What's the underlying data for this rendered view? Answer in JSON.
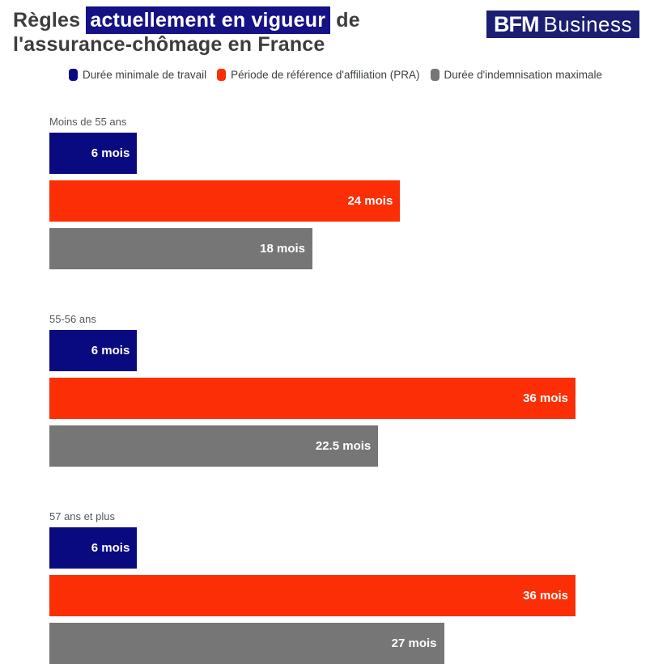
{
  "header": {
    "title_prefix": "Règles ",
    "title_highlight": "actuellement en vigueur",
    "title_suffix": " de",
    "title_line2": "l'assurance-chômage en France",
    "logo_bold": "BFM",
    "logo_light": "Business"
  },
  "colors": {
    "bar_navy": "#0a0a80",
    "bar_orange": "#fc2e05",
    "bar_gray": "#767676",
    "title_highlight_bg": "#151285",
    "logo_bg": "#1b1e73",
    "title_text": "#3d3d3d"
  },
  "legend": [
    {
      "label": "Durée minimale de travail",
      "color": "#0a0a80"
    },
    {
      "label": "Période de référence d'affiliation (PRA)",
      "color": "#fc2e05"
    },
    {
      "label": "Durée d'indemnisation maximale",
      "color": "#767676"
    }
  ],
  "chart_data": {
    "type": "bar",
    "orientation": "horizontal",
    "unit": "mois",
    "xlim": [
      0,
      36
    ],
    "grid": false,
    "legend_position": "top",
    "categories": [
      "Moins de 55 ans",
      "55-56 ans",
      "57 ans et plus"
    ],
    "series": [
      {
        "name": "Durée minimale de travail",
        "key": "duree-minimale-de-travail",
        "color": "#0a0a80",
        "values": [
          6,
          6,
          6
        ],
        "labels": [
          "6 mois",
          "6 mois",
          "6 mois"
        ]
      },
      {
        "name": "Période de référence d'affiliation (PRA)",
        "key": "periode-de-reference-affiliation",
        "color": "#fc2e05",
        "values": [
          24,
          36,
          36
        ],
        "labels": [
          "24 mois",
          "36 mois",
          "36 mois"
        ]
      },
      {
        "name": "Durée d'indemnisation maximale",
        "key": "duree-indemnisation-maximale",
        "color": "#767676",
        "values": [
          18,
          22.5,
          27
        ],
        "labels": [
          "18 mois",
          "22.5 mois",
          "27 mois"
        ]
      }
    ]
  }
}
